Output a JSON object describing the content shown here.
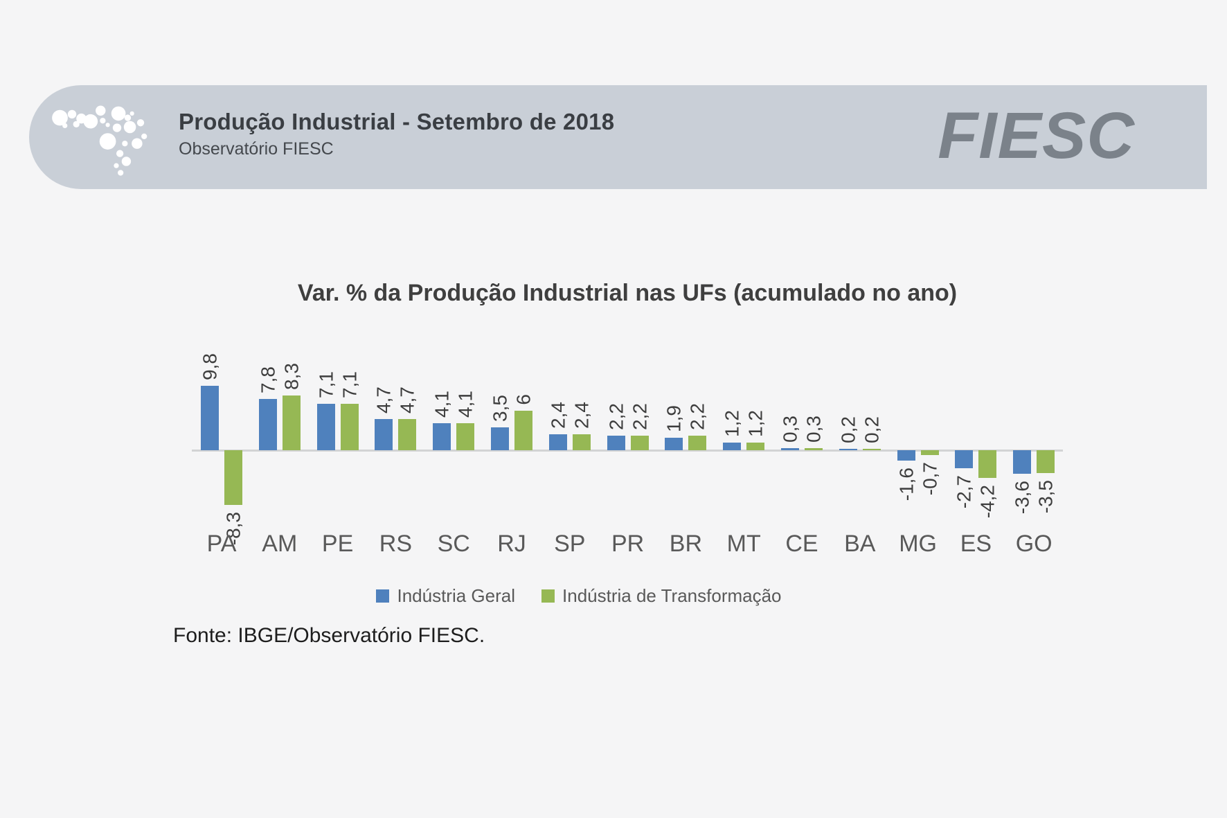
{
  "header": {
    "title": "Produção Industrial - Setembro de 2018",
    "subtitle": "Observatório FIESC",
    "brand": "FIESC",
    "band_color": "#c9cfd7",
    "brand_color": "#7b828a",
    "logo_icon": "dots-map-logo"
  },
  "chart": {
    "title": "Var. % da Produção Industrial nas UFs (acumulado no ano)",
    "source": "Fonte: IBGE/Observatório FIESC."
  },
  "chart_data": {
    "type": "bar",
    "title": "Var. % da Produção Industrial nas UFs (acumulado no ano)",
    "categories": [
      "PA",
      "AM",
      "PE",
      "RS",
      "SC",
      "RJ",
      "SP",
      "PR",
      "BR",
      "MT",
      "CE",
      "BA",
      "MG",
      "ES",
      "GO"
    ],
    "series": [
      {
        "name": "Indústria Geral",
        "color": "#4f81bd",
        "values": [
          9.8,
          7.8,
          7.1,
          4.7,
          4.1,
          3.5,
          2.4,
          2.2,
          1.9,
          1.2,
          0.3,
          0.2,
          -1.6,
          -2.7,
          -3.6
        ],
        "labels": [
          "9,8",
          "7,8",
          "7,1",
          "4,7",
          "4,1",
          "3,5",
          "2,4",
          "2,2",
          "1,9",
          "1,2",
          "0,3",
          "0,2",
          "-1,6",
          "-2,7",
          "-3,6"
        ]
      },
      {
        "name": "Indústria de Transformação",
        "color": "#96b854",
        "values": [
          -8.3,
          8.3,
          7.1,
          4.7,
          4.1,
          6,
          2.4,
          2.2,
          2.2,
          1.2,
          0.3,
          0.2,
          -0.7,
          -4.2,
          -3.5
        ],
        "labels": [
          "-8,3",
          "8,3",
          "7,1",
          "4,7",
          "4,1",
          "6",
          "2,4",
          "2,2",
          "2,2",
          "1,2",
          "0,3",
          "0,2",
          "-0,7",
          "-4,2",
          "-3,5"
        ]
      }
    ],
    "ylim": [
      -8.5,
      10
    ],
    "unit": "%",
    "grid": false,
    "data_labels": "rotated-90",
    "legend_position": "bottom"
  }
}
